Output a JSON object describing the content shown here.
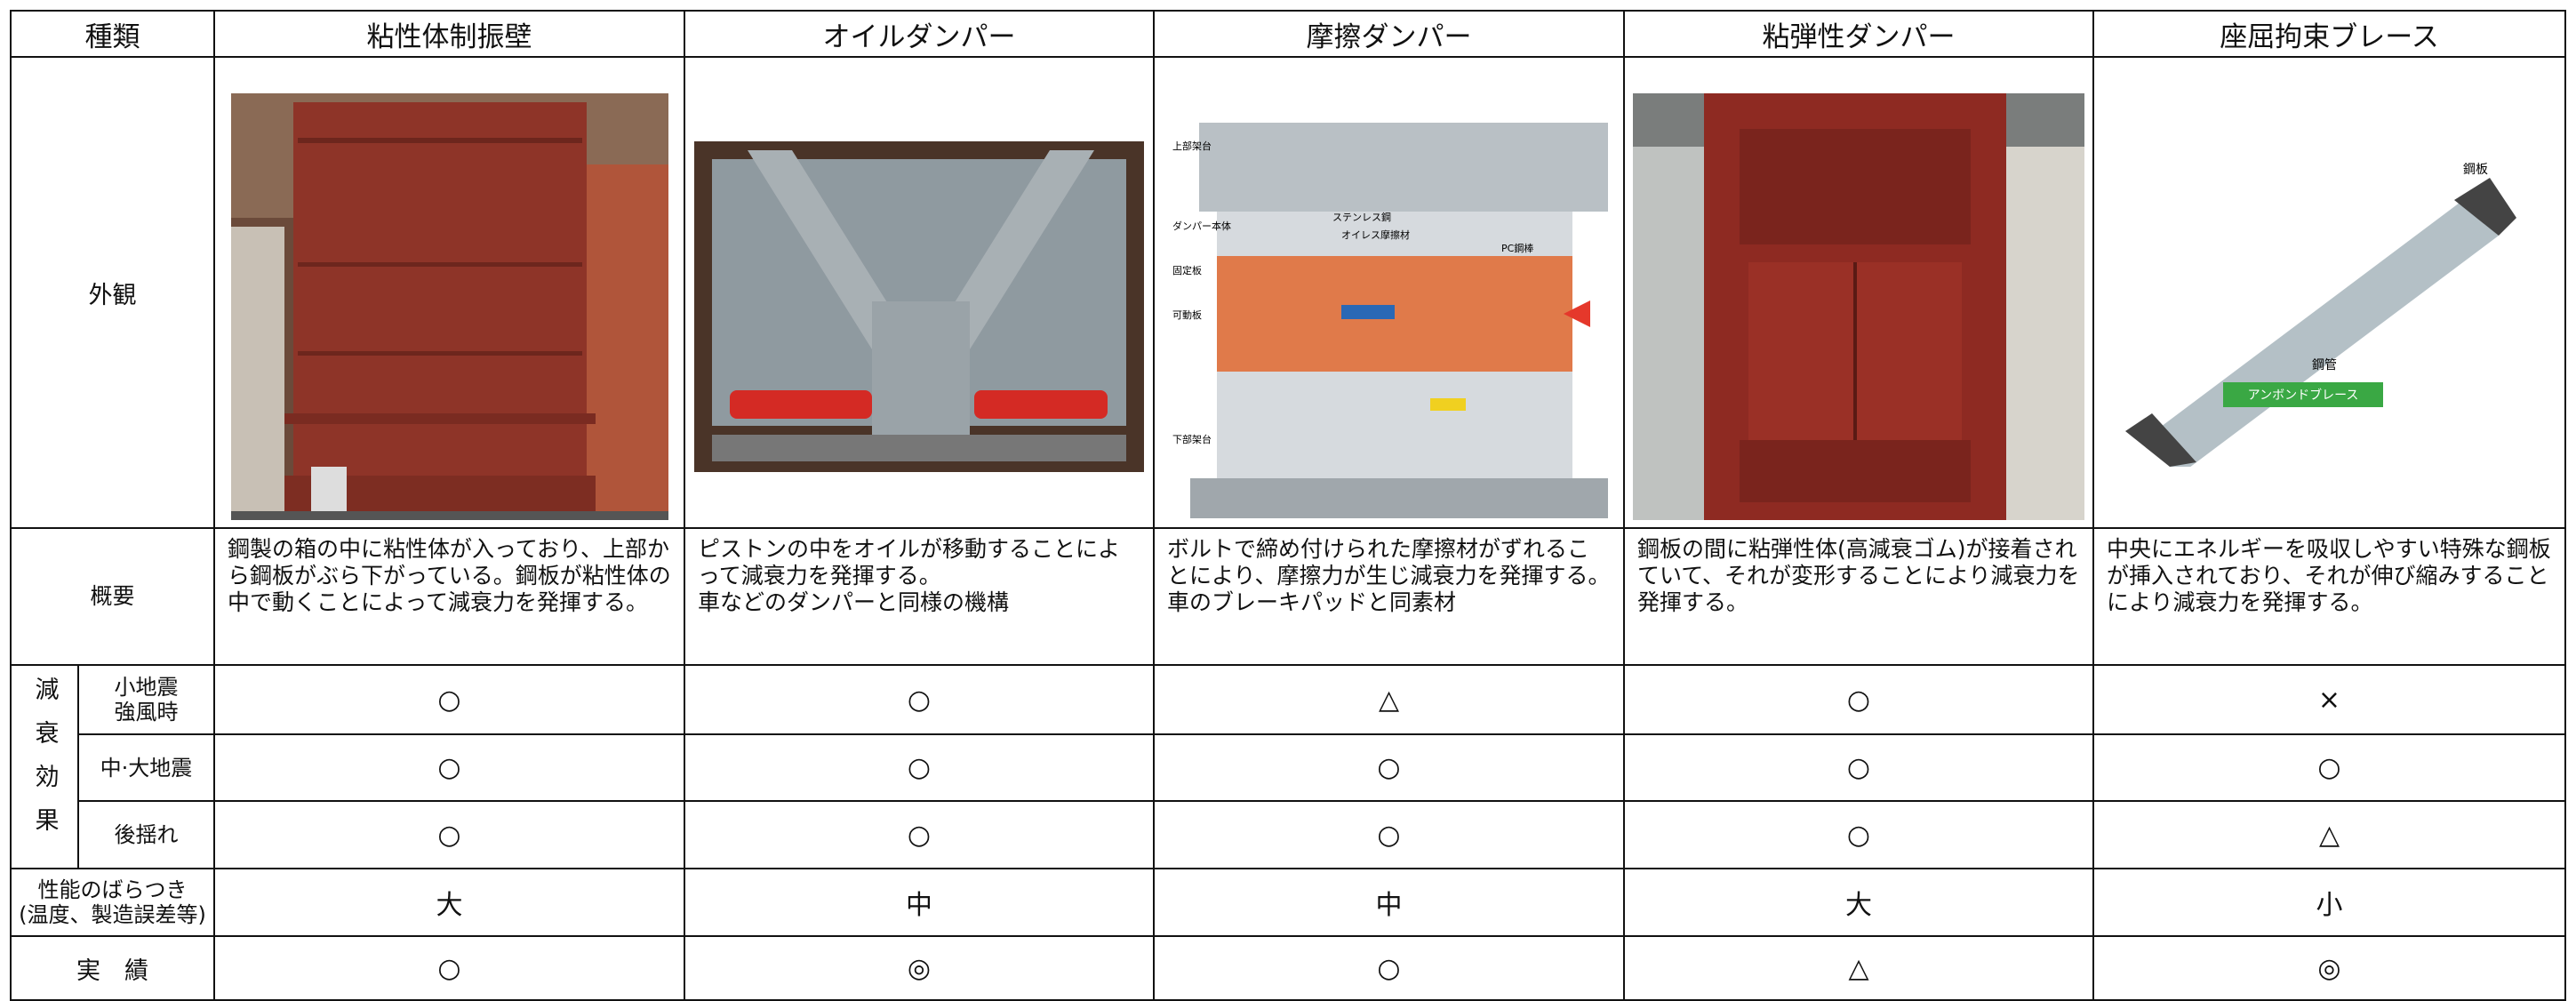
{
  "table": {
    "header": [
      "種類",
      "粘性体制振壁",
      "オイルダンパー",
      "摩擦ダンパー",
      "粘弾性ダンパー",
      "座屈拘束ブレース"
    ],
    "appearance": {
      "label": "外観",
      "friction_labels": [
        "ステンレス鋼",
        "オイレス摩擦材",
        "PC鋼棒",
        "固定板",
        "可動板",
        "上部架台",
        "ダンパー本体",
        "下部架台"
      ],
      "brace_labels": [
        "鋼板",
        "鋼管",
        "アンボンドブレース"
      ]
    },
    "overview": {
      "label": "概要",
      "cells": [
        "鋼製の箱の中に粘性体が入っており、上部から鋼板がぶら下がっている。鋼板が粘性体の中で動くことによって減衰力を発揮する。",
        "ピストンの中をオイルが移動することによって減衰力を発揮する。\n車などのダンパーと同様の機構",
        "ボルトで締め付けられた摩擦材がずれることにより、摩擦力が生じ減衰力を発揮する。車のブレーキパッドと同素材",
        "鋼板の間に粘弾性体(高減衰ゴム)が接着されていて、それが変形することにより減衰力を発揮する。",
        "中央にエネルギーを吸収しやすい特殊な鋼板が挿入されており、それが伸び縮みすることにより減衰力を発揮する。"
      ]
    },
    "effect": {
      "label": "減衰効果",
      "rows": [
        {
          "label": "小地震\n強風時",
          "cells": [
            "○",
            "○",
            "△",
            "○",
            "×"
          ]
        },
        {
          "label": "中·大地震",
          "cells": [
            "○",
            "○",
            "○",
            "○",
            "○"
          ]
        },
        {
          "label": "後揺れ",
          "cells": [
            "○",
            "○",
            "○",
            "○",
            "△"
          ]
        }
      ]
    },
    "variation": {
      "label": "性能のばらつき\n(温度、製造誤差等)",
      "cells": [
        "大",
        "中",
        "中",
        "大",
        "小"
      ]
    },
    "record": {
      "label": "実　績",
      "cells": [
        "○",
        "◎",
        "○",
        "△",
        "◎"
      ]
    }
  }
}
